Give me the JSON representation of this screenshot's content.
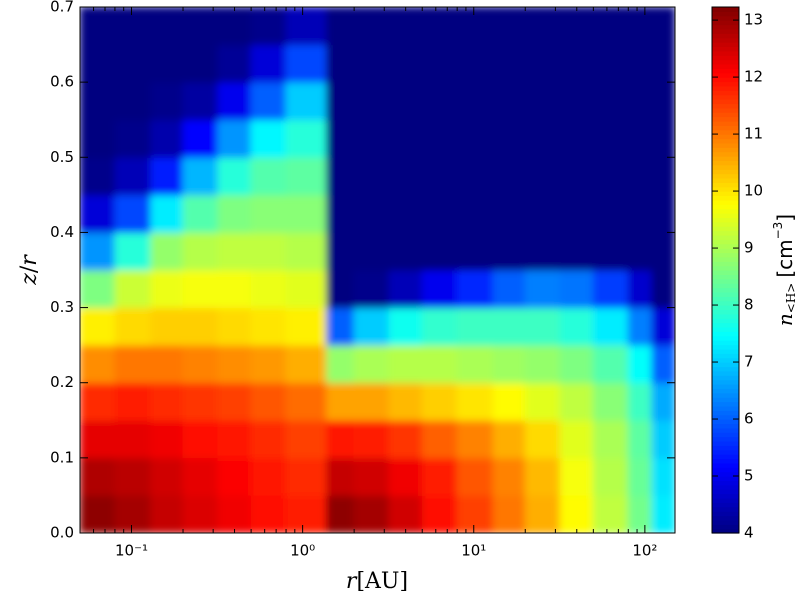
{
  "chart_data": {
    "type": "heatmap",
    "xlabel": {
      "var": "r",
      "unit": "[AU]"
    },
    "ylabel": {
      "var": "z",
      "sep": "/",
      "var2": "r"
    },
    "colorbar_label": {
      "symbol": "n",
      "subscript": "<H>",
      "unit": "[cm",
      "exponent": "−3",
      "close": "]"
    },
    "xscale": "log",
    "xlim": [
      0.05,
      150
    ],
    "ylim": [
      0,
      0.7
    ],
    "clim": [
      4,
      13.23
    ],
    "colormap": "jet",
    "xticks": [
      {
        "value": 0.1,
        "label": "10⁻¹"
      },
      {
        "value": 1,
        "label": "10⁰"
      },
      {
        "value": 10,
        "label": "10¹"
      },
      {
        "value": 100,
        "label": "10²"
      }
    ],
    "yticks": [
      {
        "value": 0,
        "label": "0.0"
      },
      0.1,
      0.2,
      0.3,
      0.4,
      0.5,
      0.6,
      0.7
    ],
    "cticks": [
      4,
      5,
      6,
      7,
      8,
      9,
      10,
      11,
      12,
      13
    ],
    "x_edges": [
      0.05,
      0.08,
      0.13,
      0.2,
      0.32,
      0.5,
      0.8,
      1.38,
      2,
      3.2,
      5,
      8,
      13,
      20,
      32,
      50,
      80,
      110,
      150
    ],
    "y_edges": [
      0,
      0.05,
      0.1,
      0.15,
      0.2,
      0.25,
      0.3,
      0.35,
      0.4,
      0.45,
      0.5,
      0.55,
      0.6,
      0.65,
      0.7
    ],
    "values": [
      [
        13.1,
        12.9,
        12.6,
        12.4,
        12.2,
        12.0,
        11.8,
        13.1,
        12.9,
        12.5,
        12.0,
        11.5,
        11.0,
        10.5,
        9.8,
        9.2,
        8.5,
        7.3
      ],
      [
        12.8,
        12.7,
        12.5,
        12.3,
        12.1,
        11.9,
        11.7,
        12.6,
        12.5,
        12.2,
        11.8,
        11.3,
        10.9,
        10.4,
        9.7,
        9.1,
        8.4,
        7.2
      ],
      [
        12.3,
        12.3,
        12.2,
        12.0,
        11.9,
        11.7,
        11.5,
        11.9,
        11.8,
        11.6,
        11.2,
        10.9,
        10.5,
        10.1,
        9.5,
        9.0,
        8.3,
        7.0
      ],
      [
        11.7,
        11.8,
        11.7,
        11.6,
        11.5,
        11.3,
        11.1,
        10.6,
        10.6,
        10.4,
        10.2,
        10.0,
        9.8,
        9.5,
        9.2,
        8.7,
        8.0,
        6.7
      ],
      [
        10.8,
        11.0,
        11.0,
        10.9,
        10.8,
        10.7,
        10.5,
        8.8,
        9.0,
        9.1,
        9.1,
        9.0,
        8.9,
        8.8,
        8.6,
        8.2,
        7.5,
        6.0
      ],
      [
        9.9,
        10.1,
        10.2,
        10.2,
        10.1,
        10.0,
        9.9,
        6.0,
        7.0,
        7.6,
        7.9,
        8.0,
        8.0,
        8.0,
        7.8,
        7.3,
        6.3,
        4.8
      ],
      [
        8.6,
        9.3,
        9.6,
        9.7,
        9.7,
        9.6,
        9.5,
        4,
        4.1,
        4.5,
        5.0,
        5.5,
        6.0,
        6.3,
        6.2,
        5.7,
        4.7,
        4
      ],
      [
        6.5,
        7.8,
        8.8,
        9.1,
        9.2,
        9.2,
        9.1,
        4,
        4,
        4,
        4,
        4,
        4,
        4,
        4,
        4,
        4,
        4
      ],
      [
        4.8,
        5.8,
        7.3,
        8.2,
        8.6,
        8.7,
        8.7,
        4,
        4,
        4,
        4,
        4,
        4,
        4,
        4,
        4,
        4,
        4
      ],
      [
        4.1,
        4.5,
        5.4,
        6.8,
        7.8,
        8.2,
        8.3,
        4,
        4,
        4,
        4,
        4,
        4,
        4,
        4,
        4,
        4,
        4
      ],
      [
        4,
        4.1,
        4.4,
        5.2,
        6.5,
        7.4,
        7.8,
        4,
        4,
        4,
        4,
        4,
        4,
        4,
        4,
        4,
        4,
        4
      ],
      [
        4,
        4,
        4.1,
        4.3,
        5.0,
        6.0,
        7.0,
        4,
        4,
        4,
        4,
        4,
        4,
        4,
        4,
        4,
        4,
        4
      ],
      [
        4,
        4,
        4,
        4,
        4.2,
        4.8,
        5.8,
        4,
        4,
        4,
        4,
        4,
        4,
        4,
        4,
        4,
        4,
        4
      ],
      [
        4,
        4,
        4,
        4,
        4,
        4.1,
        4.5,
        4,
        4,
        4,
        4,
        4,
        4,
        4,
        4,
        4,
        4,
        4
      ]
    ]
  }
}
